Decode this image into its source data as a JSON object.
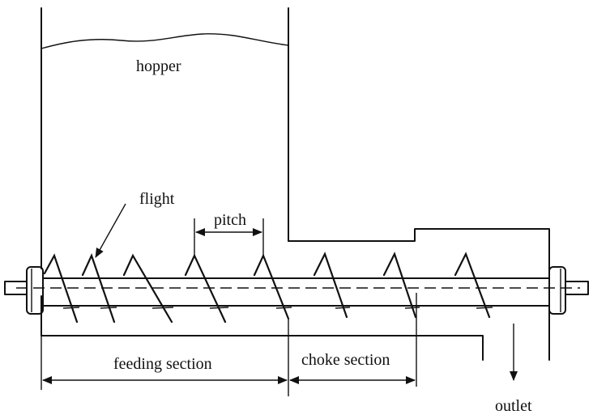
{
  "labels": {
    "hopper": "hopper",
    "flight": "flight",
    "pitch": "pitch",
    "feeding_section": "feeding section",
    "choke_section": "choke section",
    "outlet": "outlet"
  }
}
